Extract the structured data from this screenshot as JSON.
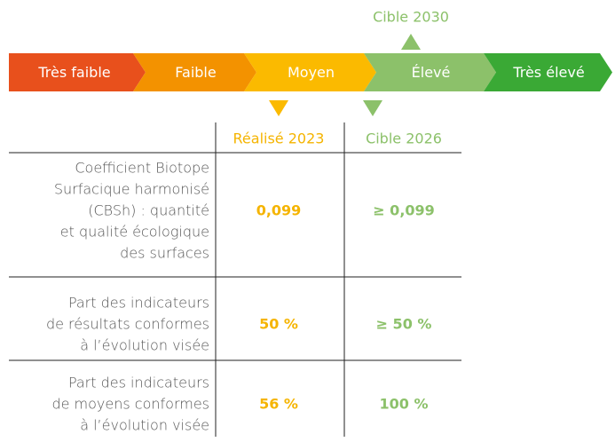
{
  "scale": {
    "levels": [
      "Très faible",
      "Faible",
      "Moyen",
      "Élevé",
      "Très élevé"
    ],
    "target_2030": "Cible 2030"
  },
  "table": {
    "columns": [
      "Réalisé 2023",
      "Cible 2026"
    ],
    "rows": [
      {
        "label": [
          "Coefficient Biotope",
          "Surfacique harmonisé",
          "(CBSh) : quantité",
          "et qualité écologique",
          "des surfaces"
        ],
        "values": [
          "0,099",
          "≥ 0,099"
        ]
      },
      {
        "label": [
          "Part des indicateurs",
          "de résultats conformes",
          "à l’évolution visée"
        ],
        "values": [
          "50 %",
          "≥ 50 %"
        ]
      },
      {
        "label": [
          "Part des indicateurs",
          "de moyens conformes",
          "à l’évolution visée"
        ],
        "values": [
          "56 %",
          "100 %"
        ]
      }
    ]
  }
}
